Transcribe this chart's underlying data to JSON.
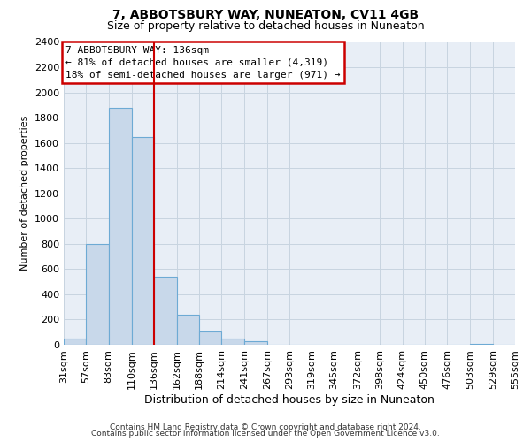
{
  "title_line1": "7, ABBOTSBURY WAY, NUNEATON, CV11 4GB",
  "title_line2": "Size of property relative to detached houses in Nuneaton",
  "xlabel": "Distribution of detached houses by size in Nuneaton",
  "ylabel": "Number of detached properties",
  "bin_edges": [
    31,
    57,
    83,
    110,
    136,
    162,
    188,
    214,
    241,
    267,
    293,
    319,
    345,
    372,
    398,
    424,
    450,
    476,
    503,
    529,
    555
  ],
  "bin_labels": [
    "31sqm",
    "57sqm",
    "83sqm",
    "110sqm",
    "136sqm",
    "162sqm",
    "188sqm",
    "214sqm",
    "241sqm",
    "267sqm",
    "293sqm",
    "319sqm",
    "345sqm",
    "372sqm",
    "398sqm",
    "424sqm",
    "450sqm",
    "476sqm",
    "503sqm",
    "529sqm",
    "555sqm"
  ],
  "counts": [
    50,
    800,
    1880,
    1650,
    540,
    235,
    105,
    50,
    30,
    0,
    0,
    0,
    0,
    0,
    0,
    0,
    0,
    0,
    10,
    0
  ],
  "bar_color": "#c8d8ea",
  "bar_edge_color": "#6daad4",
  "vline_color": "#cc0000",
  "vline_x": 136,
  "annotation_title": "7 ABBOTSBURY WAY: 136sqm",
  "annotation_line1": "← 81% of detached houses are smaller (4,319)",
  "annotation_line2": "18% of semi-detached houses are larger (971) →",
  "annotation_box_edgecolor": "#cc0000",
  "ylim": [
    0,
    2400
  ],
  "yticks": [
    0,
    200,
    400,
    600,
    800,
    1000,
    1200,
    1400,
    1600,
    1800,
    2000,
    2200,
    2400
  ],
  "grid_color": "#c8d4e0",
  "background_color": "#e8eef6",
  "footer_line1": "Contains HM Land Registry data © Crown copyright and database right 2024.",
  "footer_line2": "Contains public sector information licensed under the Open Government Licence v3.0."
}
